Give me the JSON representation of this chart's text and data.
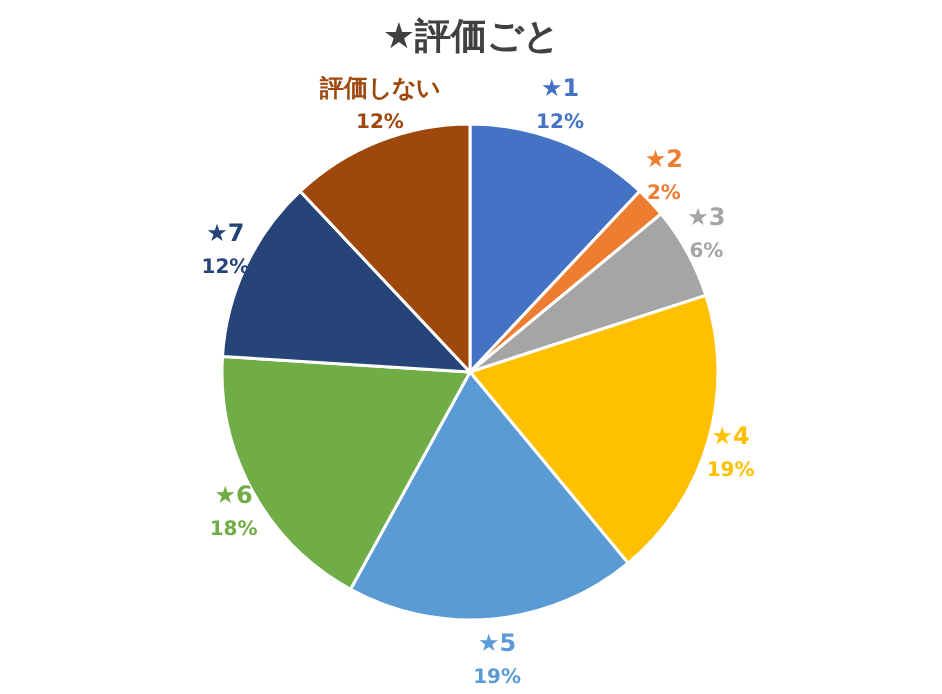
{
  "chart_data": {
    "type": "pie",
    "title": "★評価ごと",
    "categories": [
      "★1",
      "★2",
      "★3",
      "★4",
      "★5",
      "★6",
      "★7",
      "評価しない"
    ],
    "values": [
      12,
      2,
      6,
      19,
      19,
      18,
      12,
      12
    ],
    "colors": [
      "#4472c4",
      "#ed7d31",
      "#a5a5a5",
      "#ffc000",
      "#5b9bd5",
      "#70ad47",
      "#264478",
      "#9e480e"
    ],
    "value_labels": [
      "12%",
      "2%",
      "6%",
      "19%",
      "19%",
      "18%",
      "12%",
      "12%"
    ]
  }
}
